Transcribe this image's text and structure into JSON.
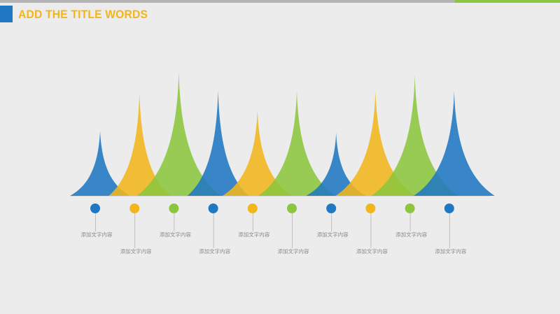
{
  "header": {
    "title": "ADD THE TITLE WORDS"
  },
  "colors": {
    "blue": "#1f78c1",
    "yellow": "#f2b61c",
    "green": "#8cc63f"
  },
  "chart_data": {
    "type": "area",
    "title": "",
    "peaks": [
      {
        "color": "blue",
        "height": 0.62,
        "label": "添加文字内容"
      },
      {
        "color": "yellow",
        "height": 0.98,
        "label": "添加文字内容"
      },
      {
        "color": "green",
        "height": 1.18,
        "label": "添加文字内容"
      },
      {
        "color": "blue",
        "height": 1.0,
        "label": "添加文字内容"
      },
      {
        "color": "yellow",
        "height": 0.82,
        "label": "添加文字内容"
      },
      {
        "color": "green",
        "height": 1.0,
        "label": "添加文字内容"
      },
      {
        "color": "blue",
        "height": 0.6,
        "label": "添加文字内容"
      },
      {
        "color": "yellow",
        "height": 1.0,
        "label": "添加文字内容"
      },
      {
        "color": "green",
        "height": 1.15,
        "label": "添加文字内容"
      },
      {
        "color": "blue",
        "height": 1.0,
        "label": "添加文字内容"
      }
    ]
  }
}
